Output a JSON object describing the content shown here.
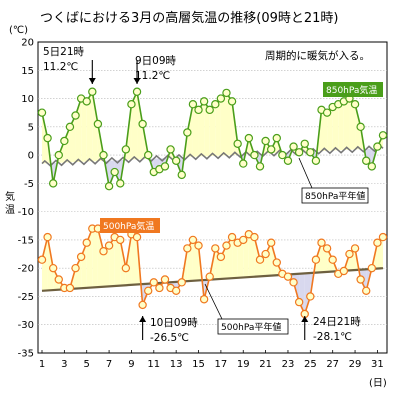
{
  "chart_data": {
    "type": "line",
    "title": "つくばにおける3月の高層気温の推移(09時と21時)",
    "ylabel": "気温",
    "yunit": "(℃)",
    "xunit": "(日)",
    "ylim": [
      -35,
      20
    ],
    "yticks": [
      20,
      15,
      10,
      5,
      0,
      -5,
      -10,
      -15,
      -20,
      -25,
      -30,
      -35
    ],
    "xlim": [
      1,
      31.5
    ],
    "xticks": [
      1,
      3,
      5,
      7,
      9,
      11,
      13,
      15,
      17,
      19,
      21,
      23,
      25,
      27,
      29,
      31
    ],
    "grid": true,
    "series": [
      {
        "name": "850hPa気温",
        "color": "#4a9e1a",
        "fill": "#ffffc8",
        "x": [
          1,
          1.5,
          2,
          2.5,
          3,
          3.5,
          4,
          4.5,
          5,
          5.5,
          6,
          6.5,
          7,
          7.5,
          8,
          8.5,
          9,
          9.5,
          10,
          10.5,
          11,
          11.5,
          12,
          12.5,
          13,
          13.5,
          14,
          14.5,
          15,
          15.5,
          16,
          16.5,
          17,
          17.5,
          18,
          18.5,
          19,
          19.5,
          20,
          20.5,
          21,
          21.5,
          22,
          22.5,
          23,
          23.5,
          24,
          24.5,
          25,
          25.5,
          26,
          26.5,
          27,
          27.5,
          28,
          28.5,
          29,
          29.5,
          30,
          30.5,
          31,
          31.5
        ],
        "values": [
          7.5,
          3,
          -5,
          0,
          2.5,
          5,
          7,
          10,
          9.5,
          11.2,
          5.5,
          0,
          -5.5,
          -3,
          -5,
          1,
          9,
          11.2,
          5.5,
          0,
          -3,
          -2.5,
          -2,
          1,
          -1,
          -3.5,
          4,
          9,
          8,
          9.5,
          8,
          9,
          10,
          11,
          9.5,
          2,
          -1.5,
          3,
          0,
          -2,
          2.5,
          1,
          3,
          0,
          -1,
          1.5,
          0.5,
          2,
          0.5,
          -1,
          8,
          7.5,
          8.5,
          9,
          9.5,
          10,
          9,
          5,
          -1,
          -2,
          1.5,
          3.5
        ]
      },
      {
        "name": "850hPa平年値",
        "color": "#777777",
        "values_start_end": [
          -1.5,
          1.2
        ]
      },
      {
        "name": "500hPa気温",
        "color": "#f07820",
        "fill": "#ffffc8",
        "x": [
          1,
          1.5,
          2,
          2.5,
          3,
          3.5,
          4,
          4.5,
          5,
          5.5,
          6,
          6.5,
          7,
          7.5,
          8,
          8.5,
          9,
          9.5,
          10,
          10.5,
          11,
          11.5,
          12,
          12.5,
          13,
          13.5,
          14,
          14.5,
          15,
          15.5,
          16,
          16.5,
          17,
          17.5,
          18,
          18.5,
          19,
          19.5,
          20,
          20.5,
          21,
          21.5,
          22,
          22.5,
          23,
          23.5,
          24,
          24.5,
          25,
          25.5,
          26,
          26.5,
          27,
          27.5,
          28,
          28.5,
          29,
          29.5,
          30,
          30.5,
          31,
          31.5
        ],
        "values": [
          -18.5,
          -14.5,
          -20,
          -22,
          -23.5,
          -23.5,
          -20,
          -18,
          -15.5,
          -13,
          -13,
          -17,
          -16,
          -14.5,
          -15,
          -20,
          -14,
          -14.5,
          -26.5,
          -24,
          -22.5,
          -23.5,
          -22,
          -23.5,
          -24,
          -22.5,
          -16.5,
          -15,
          -16,
          -25.5,
          -21.5,
          -16.5,
          -18,
          -16,
          -14.5,
          -15.5,
          -15,
          -14,
          -14.5,
          -18.5,
          -17.5,
          -15.5,
          -19,
          -21,
          -21.5,
          -22.5,
          -26,
          -28.1,
          -25,
          -18.5,
          -15.5,
          -16.5,
          -18.5,
          -21,
          -20.5,
          -17.5,
          -16.5,
          -22,
          -24,
          -20,
          -15.5,
          -14.5
        ]
      },
      {
        "name": "500hPa平年値",
        "color": "#6e6040",
        "values_start_end": [
          -24,
          -20
        ]
      }
    ],
    "annotations": [
      {
        "text": "5日21時",
        "text2": "11.2℃",
        "x": 5.5,
        "y": 11.2
      },
      {
        "text": "9日09時",
        "text2": "11.2℃",
        "x": 9.5,
        "y": 11.2
      },
      {
        "text": "10日09時",
        "text2": "-26.5℃",
        "x": 10,
        "y": -26.5
      },
      {
        "text": "24日21時",
        "text2": "-28.1℃",
        "x": 24.5,
        "y": -28.1
      }
    ],
    "note": "周期的に暖気が入る。",
    "labels": {
      "s850": "850hPa気温",
      "n850": "850hPa平年値",
      "s500": "500hPa気温",
      "n500": "500hPa平年値"
    }
  }
}
